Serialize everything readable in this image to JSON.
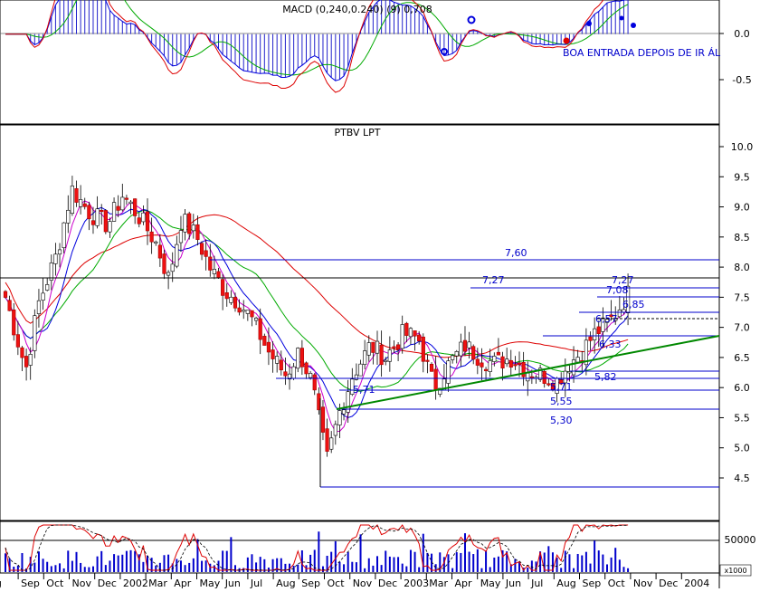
{
  "macd_panel": {
    "title": "MACD (0,240,0.240) (9) 0,708",
    "yticks": [
      "0.0",
      "-0.5"
    ],
    "annotation": "BOA ENTRADA DEPOIS DE IR ÁL"
  },
  "price_panel": {
    "title": "PTBV LPT",
    "yticks": [
      "10.0",
      "9.5",
      "9.0",
      "8.5",
      "8.0",
      "7.5",
      "7.0",
      "6.5",
      "6.0",
      "5.5",
      "5.0",
      "4.5"
    ],
    "levels": [
      {
        "label": "7,60",
        "value": 7.6
      },
      {
        "label": "7,27",
        "value": 7.27
      },
      {
        "label": "7,27",
        "value": 7.27
      },
      {
        "label": "7,08",
        "value": 7.08
      },
      {
        "label": "6,85",
        "value": 6.85
      },
      {
        "label": "6,57",
        "value": 6.57
      },
      {
        "label": "6,33",
        "value": 6.33
      },
      {
        "label": "5,82",
        "value": 5.82
      },
      {
        "label": "5,71",
        "value": 5.71
      },
      {
        "label": "5,71",
        "value": 5.71
      },
      {
        "label": "5,55",
        "value": 5.55
      },
      {
        "label": "5,30",
        "value": 5.3
      }
    ]
  },
  "volume_panel": {
    "ytick": "50000",
    "unit": "x1000"
  },
  "x_axis": {
    "labels": [
      "g",
      "Sep",
      "Oct",
      "Nov",
      "Dec",
      "2002",
      "Mar",
      "Apr",
      "May",
      "Jun",
      "Jul",
      "Aug",
      "Sep",
      "Oct",
      "Nov",
      "Dec",
      "2003",
      "Mar",
      "Apr",
      "May",
      "Jun",
      "Jul",
      "Aug",
      "Sep",
      "Oct",
      "Nov",
      "Dec",
      "2004"
    ]
  },
  "colors": {
    "up_candle": "#ffffff",
    "down_candle": "#ee1111",
    "levels": "#0000cc",
    "trendline": "#008800",
    "ma_red": "#dd0000",
    "ma_green": "#00aa00",
    "ma_blue": "#0000dd",
    "ma_magenta": "#cc00cc",
    "histogram": "#2222cc"
  },
  "chart_data": {
    "type": "candlestick",
    "symbol": "PTBV LPT",
    "price_ylim": [
      4.4,
      10.2
    ],
    "macd_ylim": [
      -0.85,
      0.3
    ],
    "months": [
      "Aug 2001",
      "Sep 2001",
      "Oct 2001",
      "Nov 2001",
      "Dec 2001",
      "Jan 2002",
      "Feb 2002",
      "Mar 2002",
      "Apr 2002",
      "May 2002",
      "Jun 2002",
      "Jul 2002",
      "Aug 2002",
      "Sep 2002",
      "Oct 2002",
      "Nov 2002",
      "Dec 2002",
      "Jan 2003",
      "Feb 2003",
      "Mar 2003",
      "Apr 2003",
      "May 2003",
      "Jun 2003",
      "Jul 2003",
      "Aug 2003",
      "Sep 2003",
      "Oct 2003",
      "Nov 2003"
    ],
    "close_anchors": [
      {
        "month": 0.0,
        "value": 7.5
      },
      {
        "month": 0.8,
        "value": 6.3
      },
      {
        "month": 1.3,
        "value": 7.4
      },
      {
        "month": 2.0,
        "value": 8.2
      },
      {
        "month": 2.6,
        "value": 9.3
      },
      {
        "month": 3.3,
        "value": 8.9
      },
      {
        "month": 4.0,
        "value": 8.7
      },
      {
        "month": 4.6,
        "value": 9.2
      },
      {
        "month": 5.3,
        "value": 8.8
      },
      {
        "month": 5.9,
        "value": 8.4
      },
      {
        "month": 6.4,
        "value": 7.8
      },
      {
        "month": 6.9,
        "value": 8.8
      },
      {
        "month": 7.5,
        "value": 8.5
      },
      {
        "month": 8.0,
        "value": 8.0
      },
      {
        "month": 8.6,
        "value": 7.6
      },
      {
        "month": 9.2,
        "value": 7.4
      },
      {
        "month": 9.7,
        "value": 7.1
      },
      {
        "month": 10.3,
        "value": 6.6
      },
      {
        "month": 11.0,
        "value": 6.2
      },
      {
        "month": 11.5,
        "value": 6.6
      },
      {
        "month": 12.0,
        "value": 6.1
      },
      {
        "month": 12.4,
        "value": 5.2
      },
      {
        "month": 12.6,
        "value": 4.8
      },
      {
        "month": 13.1,
        "value": 5.6
      },
      {
        "month": 13.6,
        "value": 6.2
      },
      {
        "month": 14.3,
        "value": 6.7
      },
      {
        "month": 14.9,
        "value": 6.5
      },
      {
        "month": 15.6,
        "value": 6.9
      },
      {
        "month": 16.2,
        "value": 6.8
      },
      {
        "month": 16.8,
        "value": 6.0
      },
      {
        "month": 17.4,
        "value": 6.4
      },
      {
        "month": 18.0,
        "value": 6.7
      },
      {
        "month": 18.6,
        "value": 6.5
      },
      {
        "month": 19.2,
        "value": 6.4
      },
      {
        "month": 19.8,
        "value": 6.5
      },
      {
        "month": 20.4,
        "value": 6.3
      },
      {
        "month": 21.1,
        "value": 6.2
      },
      {
        "month": 21.6,
        "value": 6.1
      },
      {
        "month": 22.1,
        "value": 6.4
      },
      {
        "month": 22.6,
        "value": 6.6
      },
      {
        "month": 23.1,
        "value": 6.9
      },
      {
        "month": 23.7,
        "value": 7.1
      },
      {
        "month": 24.4,
        "value": 7.55
      }
    ]
  }
}
